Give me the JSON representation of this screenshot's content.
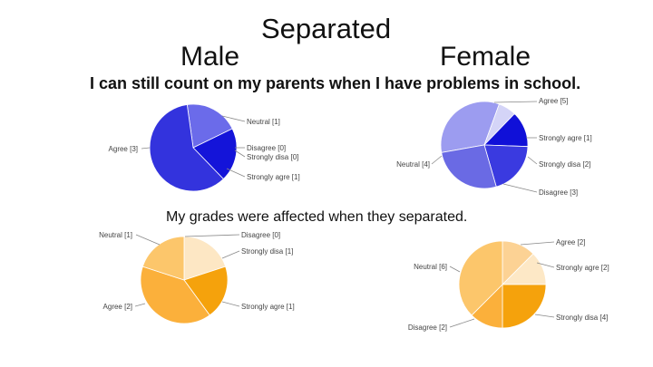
{
  "header": {
    "title": "Separated",
    "male_label": "Male",
    "female_label": "Female",
    "question_1": "I can still count on my parents when I have problems in school.",
    "question_2": "My grades were affected when they separated."
  },
  "chart_data": [
    {
      "type": "pie",
      "group": "Male",
      "question": "I can still count on my parents when I have problems in school.",
      "palette": "blue",
      "slices": [
        {
          "label": "Neutral [1]",
          "value": 1,
          "color": "#6b6bea"
        },
        {
          "label": "Disagree [0]",
          "value": 0,
          "color": "#1f1fcc"
        },
        {
          "label": "Strongly disa [0]",
          "value": 0,
          "color": "#1f1fcc"
        },
        {
          "label": "Strongly agre [1]",
          "value": 1,
          "color": "#1414d9"
        },
        {
          "label": "Agree [3]",
          "value": 3,
          "color": "#3333dd"
        }
      ]
    },
    {
      "type": "pie",
      "group": "Female",
      "question": "I can still count on my parents when I have problems in school.",
      "palette": "blue",
      "slices": [
        {
          "label": "Agree [5]",
          "value": 5,
          "color": "#9c9cf0"
        },
        {
          "label": "Strongly agre [1]",
          "value": 1,
          "color": "#d4d4f7"
        },
        {
          "label": "Strongly disa [2]",
          "value": 2,
          "color": "#1010d8"
        },
        {
          "label": "Disagree [3]",
          "value": 3,
          "color": "#3a3ae0"
        },
        {
          "label": "Neutral [4]",
          "value": 4,
          "color": "#6a6ae4"
        }
      ]
    },
    {
      "type": "pie",
      "group": "Male",
      "question": "My grades were affected when they separated.",
      "palette": "orange",
      "slices": [
        {
          "label": "Disagree [0]",
          "value": 0,
          "color": "#fde7c4"
        },
        {
          "label": "Strongly disa [1]",
          "value": 1,
          "color": "#fde7c4"
        },
        {
          "label": "Strongly agre [1]",
          "value": 1,
          "color": "#f5a20c"
        },
        {
          "label": "Agree [2]",
          "value": 2,
          "color": "#fbb03b"
        },
        {
          "label": "Neutral [1]",
          "value": 1,
          "color": "#fcc66b"
        }
      ]
    },
    {
      "type": "pie",
      "group": "Female",
      "question": "My grades were affected when they separated.",
      "palette": "orange",
      "slices": [
        {
          "label": "Agree [2]",
          "value": 2,
          "color": "#fcd294"
        },
        {
          "label": "Strongly agre [2]",
          "value": 2,
          "color": "#fde8c6"
        },
        {
          "label": "Strongly disa [4]",
          "value": 4,
          "color": "#f5a20c"
        },
        {
          "label": "Disagree [2]",
          "value": 2,
          "color": "#fbb03b"
        },
        {
          "label": "Neutral [6]",
          "value": 6,
          "color": "#fcc66b"
        }
      ]
    }
  ]
}
